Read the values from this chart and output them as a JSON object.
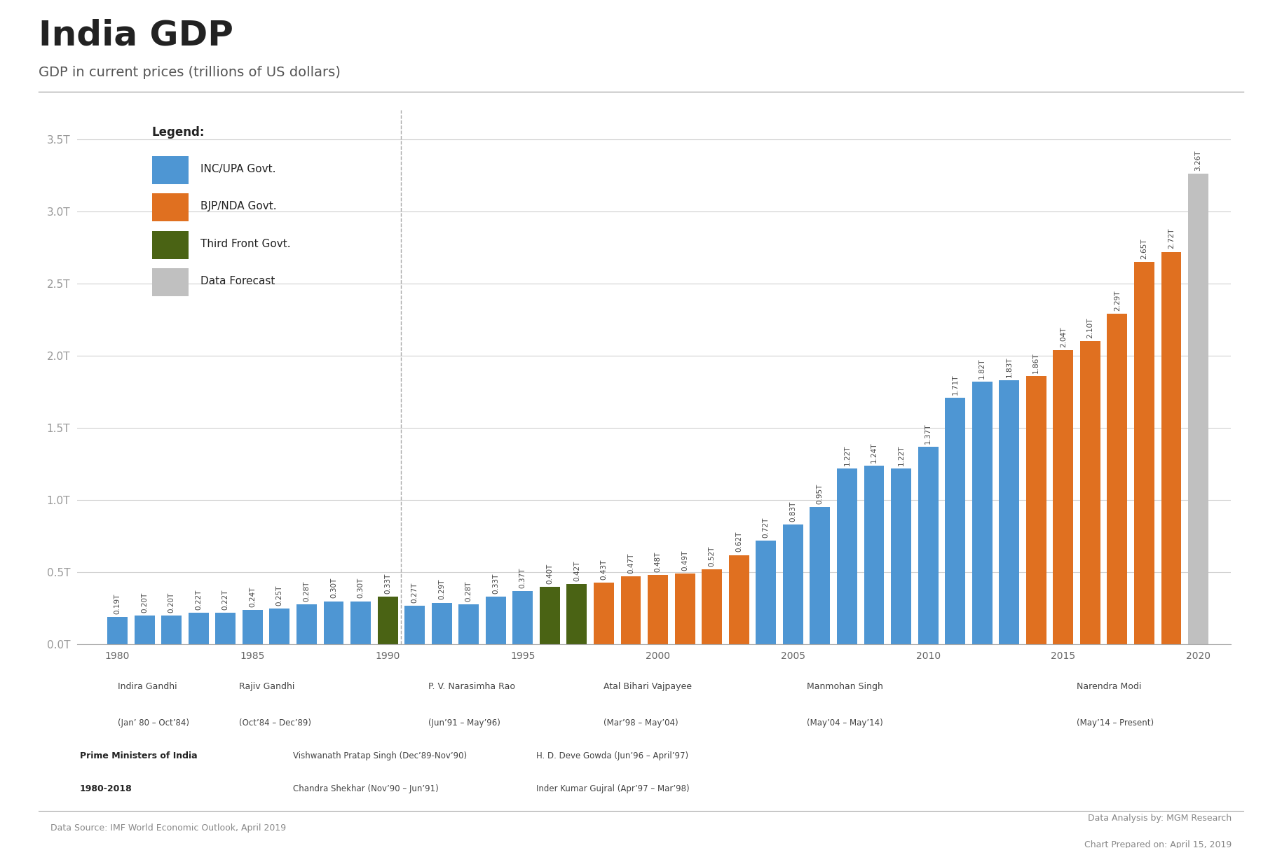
{
  "title": "India GDP",
  "subtitle": "GDP in current prices (trillions of US dollars)",
  "years": [
    1980,
    1981,
    1982,
    1983,
    1984,
    1985,
    1986,
    1987,
    1988,
    1989,
    1990,
    1991,
    1992,
    1993,
    1994,
    1995,
    1996,
    1997,
    1998,
    1999,
    2000,
    2001,
    2002,
    2003,
    2004,
    2005,
    2006,
    2007,
    2008,
    2009,
    2010,
    2011,
    2012,
    2013,
    2014,
    2015,
    2016,
    2017,
    2018,
    2019
  ],
  "values": [
    0.19,
    0.2,
    0.2,
    0.22,
    0.22,
    0.24,
    0.25,
    0.28,
    0.3,
    0.3,
    0.33,
    0.27,
    0.29,
    0.28,
    0.33,
    0.37,
    0.4,
    0.42,
    0.43,
    0.47,
    0.48,
    0.49,
    0.52,
    0.62,
    0.72,
    0.83,
    0.95,
    1.22,
    1.24,
    1.22,
    1.37,
    1.71,
    1.82,
    1.83,
    1.86,
    2.04,
    2.1,
    2.29,
    2.65,
    2.72
  ],
  "forecast_values": [
    3.26
  ],
  "forecast_years": [
    2020
  ],
  "colors": {
    "INC_UPA": "#4e96d3",
    "BJP_NDA": "#e07020",
    "ThirdFront": "#4a6314",
    "Forecast": "#c0c0c0",
    "background": "#ffffff",
    "gridline": "#d0d0d0",
    "text": "#333333",
    "axis_label": "#888888",
    "ytick": "#999999"
  },
  "bar_colors": [
    "INC_UPA",
    "INC_UPA",
    "INC_UPA",
    "INC_UPA",
    "INC_UPA",
    "INC_UPA",
    "INC_UPA",
    "INC_UPA",
    "INC_UPA",
    "INC_UPA",
    "ThirdFront",
    "INC_UPA",
    "INC_UPA",
    "INC_UPA",
    "INC_UPA",
    "INC_UPA",
    "ThirdFront",
    "ThirdFront",
    "BJP_NDA",
    "BJP_NDA",
    "BJP_NDA",
    "BJP_NDA",
    "BJP_NDA",
    "BJP_NDA",
    "INC_UPA",
    "INC_UPA",
    "INC_UPA",
    "INC_UPA",
    "INC_UPA",
    "INC_UPA",
    "INC_UPA",
    "INC_UPA",
    "INC_UPA",
    "INC_UPA",
    "BJP_NDA",
    "BJP_NDA",
    "BJP_NDA",
    "BJP_NDA",
    "BJP_NDA",
    "BJP_NDA"
  ],
  "footer_left": "Data Source: IMF World Economic Outlook, April 2019",
  "footer_right1": "Data Analysis by: MGM Research",
  "footer_right2": "Chart Prepared on: April 15, 2019",
  "ylim": [
    0,
    3.7
  ],
  "yticks": [
    0.0,
    0.5,
    1.0,
    1.5,
    2.0,
    2.5,
    3.0,
    3.5
  ],
  "xtick_positions": [
    1980,
    1985,
    1990,
    1995,
    2000,
    2005,
    2010,
    2015,
    2020
  ],
  "xlim": [
    1978.5,
    2021.2
  ],
  "bar_width": 0.75,
  "vline_x": 1990.5,
  "legend_items": [
    [
      "INC_UPA",
      "INC/UPA Govt."
    ],
    [
      "BJP_NDA",
      "BJP/NDA Govt."
    ],
    [
      "ThirdFront",
      "Third Front Govt."
    ],
    [
      "Forecast",
      "Data Forecast"
    ]
  ],
  "pm_main": [
    {
      "name": "Indira Gandhi",
      "dates": "(Jan’ 80 – Oct’84)",
      "x": 1980.0
    },
    {
      "name": "Rajiv Gandhi",
      "dates": "(Oct’84 – Dec’89)",
      "x": 1984.5
    },
    {
      "name": "P. V. Narasimha Rao",
      "dates": "(Jun’91 – May’96)",
      "x": 1991.5
    },
    {
      "name": "Atal Bihari Vajpayee",
      "dates": "(Mar’98 – May’04)",
      "x": 1998.0
    },
    {
      "name": "Manmohan Singh",
      "dates": "(May’04 – May’14)",
      "x": 2005.5
    },
    {
      "name": "Narendra Modi",
      "dates": "(May’14 – Present)",
      "x": 2015.5
    }
  ],
  "pm_extra_row1": [
    {
      "name": "Vishwanath Pratap Singh (Dec’89-Nov’90)",
      "x": 1986.5
    },
    {
      "name": "H. D. Deve Gowda (Jun’96 – April’97)",
      "x": 1995.5
    }
  ],
  "pm_extra_row2": [
    {
      "name": "Chandra Shekhar (Nov’90 – Jun’91)",
      "x": 1986.5
    },
    {
      "name": "Inder Kumar Gujral (Apr’97 – Mar’98)",
      "x": 1995.5
    }
  ],
  "pm_bold_label": "Prime Ministers of India",
  "pm_bold_year": "1980-2018"
}
